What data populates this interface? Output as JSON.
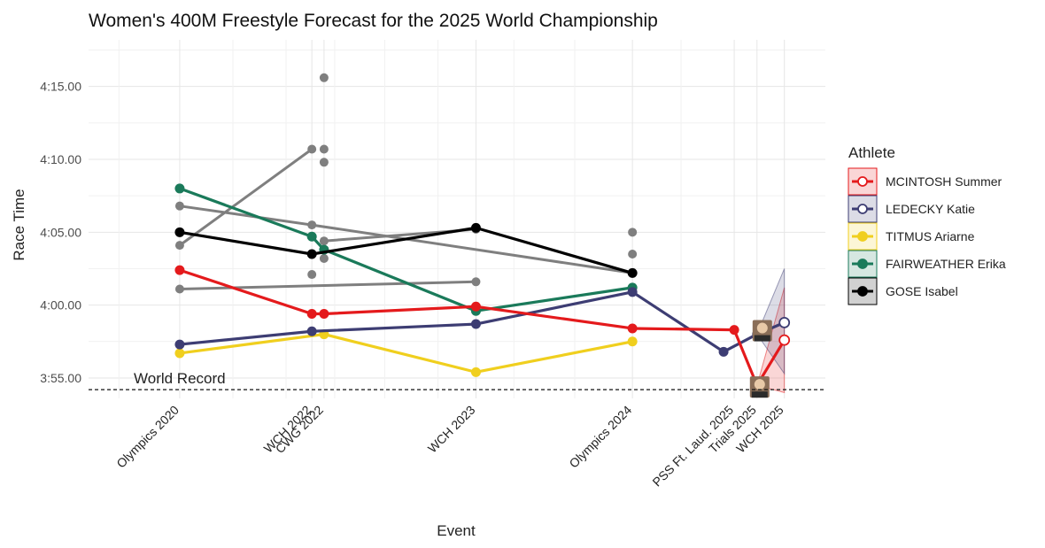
{
  "chart_data": {
    "type": "line",
    "title": "Women's 400M Freestyle Forecast for the 2025 World Championship",
    "xlabel": "Event",
    "ylabel": "Race Time",
    "x_events": [
      "Olympics 2020",
      "WCH 2022",
      "CWG 2022",
      "WCH 2023",
      "Olympics 2024",
      "PSS Ft. Laud. 2025",
      "Trials 2025",
      "WCH 2025"
    ],
    "x_positions_years": [
      2021.6,
      2022.47,
      2022.55,
      2023.55,
      2024.58,
      2025.25,
      2025.4,
      2025.58
    ],
    "y_ticks": [
      "4:15.00",
      "4:10.00",
      "4:05.00",
      "4:00.00",
      "3:55.00"
    ],
    "y_tick_seconds": [
      255,
      250,
      245,
      240,
      235
    ],
    "ylim_seconds": [
      233.6,
      258.2
    ],
    "world_record": {
      "label": "World Record",
      "seconds": 234.2
    },
    "legend": {
      "title": "Athlete",
      "position": "right"
    },
    "series": [
      {
        "name": "MCINTOSH Summer",
        "color": "#e41a1c",
        "points": [
          [
            2021.6,
            242.4
          ],
          [
            2022.47,
            239.4
          ],
          [
            2022.55,
            239.4
          ],
          [
            2023.55,
            239.9
          ],
          [
            2024.58,
            238.4
          ],
          [
            2025.25,
            238.3
          ],
          [
            2025.4,
            234.5
          ]
        ],
        "forecast": {
          "x": 2025.58,
          "y": 237.6,
          "band_low": 234.0,
          "band_high": 241.2
        }
      },
      {
        "name": "LEDECKY Katie",
        "color": "#3d3d73",
        "points": [
          [
            2021.6,
            237.3
          ],
          [
            2022.47,
            238.2
          ],
          [
            2023.55,
            238.7
          ],
          [
            2024.58,
            240.9
          ],
          [
            2025.18,
            236.8
          ],
          [
            2025.4,
            238.0
          ]
        ],
        "forecast": {
          "x": 2025.58,
          "y": 238.8,
          "band_low": 235.3,
          "band_high": 242.5
        }
      },
      {
        "name": "TITMUS Ariarne",
        "color": "#f0cf1e",
        "points": [
          [
            2021.6,
            236.7
          ],
          [
            2022.55,
            238.0
          ],
          [
            2023.55,
            235.4
          ],
          [
            2024.58,
            237.5
          ]
        ]
      },
      {
        "name": "FAIRWEATHER Erika",
        "color": "#1a7a5a",
        "points": [
          [
            2021.6,
            248.0
          ],
          [
            2022.47,
            244.7
          ],
          [
            2022.55,
            243.8
          ],
          [
            2023.55,
            239.6
          ],
          [
            2024.58,
            241.2
          ]
        ]
      },
      {
        "name": "GOSE Isabel",
        "color": "#000000",
        "points": [
          [
            2021.6,
            245.0
          ],
          [
            2022.47,
            243.5
          ],
          [
            2023.55,
            245.3
          ],
          [
            2024.58,
            242.2
          ]
        ]
      }
    ],
    "other_athletes": {
      "color": "#7f7f7f",
      "lines": [
        [
          [
            2021.6,
            246.8
          ],
          [
            2022.47,
            245.5
          ],
          [
            2024.58,
            242.2
          ]
        ],
        [
          [
            2021.6,
            244.1
          ],
          [
            2022.47,
            250.7
          ]
        ],
        [
          [
            2021.6,
            241.1
          ],
          [
            2023.55,
            241.6
          ]
        ],
        [
          [
            2022.55,
            244.4
          ],
          [
            2023.55,
            245.2
          ]
        ]
      ],
      "points": [
        [
          2022.47,
          242.1
        ],
        [
          2022.55,
          255.6
        ],
        [
          2022.55,
          250.7
        ],
        [
          2022.55,
          249.8
        ],
        [
          2022.55,
          243.2
        ],
        [
          2024.58,
          245.0
        ],
        [
          2024.58,
          243.5
        ]
      ]
    }
  }
}
